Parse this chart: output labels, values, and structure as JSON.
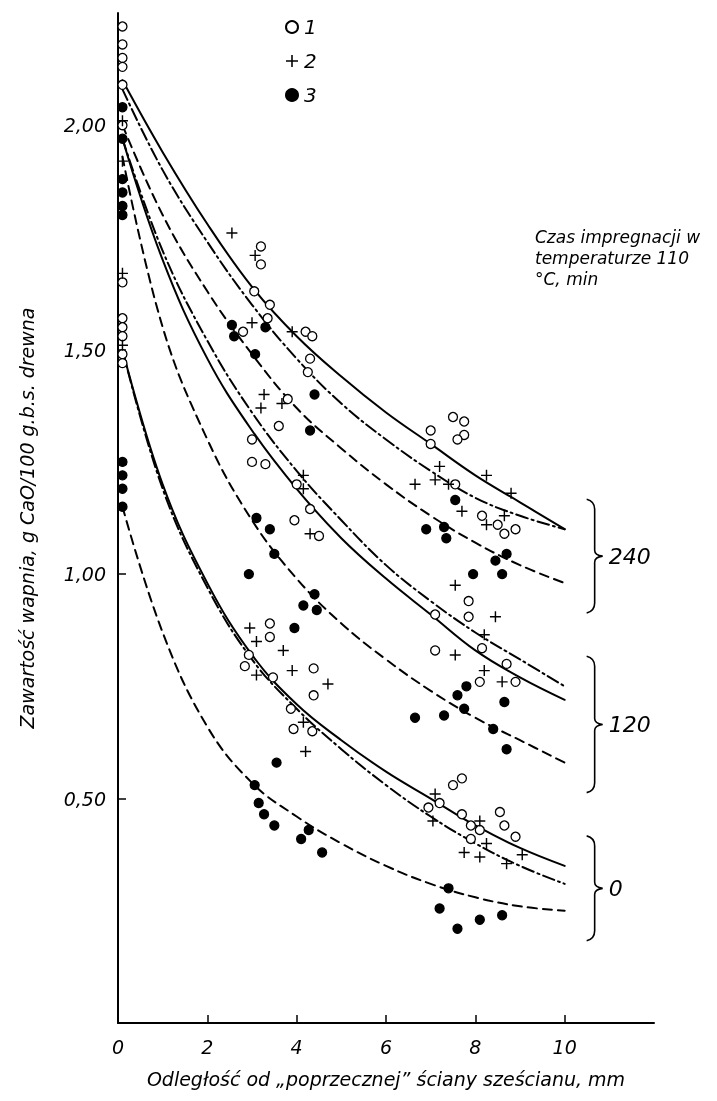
{
  "chart_data": {
    "type": "scatter",
    "xlabel": "Odległość od „poprzecznej” ściany sześcianu, mm",
    "ylabel": "Zawartość wapnia, g CaO/100 g.b.s. drewna",
    "xlim": [
      0,
      12
    ],
    "xticks": [
      0,
      2,
      4,
      6,
      8,
      10
    ],
    "ylim": [
      0,
      2.25
    ],
    "yticks": [
      {
        "value": 0.5,
        "label": "0,50"
      },
      {
        "value": 1,
        "label": "1,00"
      },
      {
        "value": 1.5,
        "label": "1,50"
      },
      {
        "value": 2,
        "label": "2,00"
      }
    ],
    "grid": false,
    "legend": "top",
    "annotations": [
      "Czas impregnacji w temperaturze 110 °C, min",
      "240",
      "120",
      "0"
    ],
    "series": [
      {
        "type": "scatter",
        "name": "1",
        "marker": "circle",
        "color": "#ffffff",
        "x": [
          0.1,
          0.1,
          0.1,
          0.1,
          0.1,
          0.1,
          0.1,
          0.1,
          0.1,
          0.1,
          0.1,
          0.1,
          3.2,
          3.2,
          3.05,
          3.4,
          3.35,
          2.8,
          4.2,
          4.35,
          4.3,
          4.25,
          7.0,
          7.0,
          7.5,
          7.75,
          7.75,
          7.6,
          7.55,
          8.15,
          8.5,
          8.9,
          8.65,
          3.8,
          3.6,
          3.0,
          3.0,
          3.3,
          4.0,
          4.3,
          3.95,
          4.5,
          7.1,
          7.85,
          7.85,
          7.1,
          8.15,
          8.7,
          8.9,
          8.1,
          3.4,
          3.4,
          2.93,
          2.84,
          3.47,
          4.38,
          4.38,
          3.87,
          3.93,
          4.35,
          6.95,
          7.2,
          7.5,
          7.7,
          7.7,
          7.9,
          8.1,
          7.9,
          8.55,
          8.65,
          8.9
        ],
        "values": [
          2.22,
          2.18,
          2.15,
          2.13,
          2.09,
          2.0,
          1.65,
          1.57,
          1.55,
          1.53,
          1.49,
          1.47,
          1.73,
          1.69,
          1.63,
          1.6,
          1.57,
          1.54,
          1.54,
          1.53,
          1.48,
          1.45,
          1.32,
          1.29,
          1.35,
          1.34,
          1.31,
          1.3,
          1.2,
          1.13,
          1.11,
          1.1,
          1.09,
          1.39,
          1.33,
          1.3,
          1.25,
          1.245,
          1.2,
          1.145,
          1.12,
          1.085,
          0.91,
          0.94,
          0.905,
          0.83,
          0.835,
          0.8,
          0.76,
          0.76,
          0.89,
          0.86,
          0.82,
          0.795,
          0.77,
          0.79,
          0.73,
          0.7,
          0.655,
          0.65,
          0.48,
          0.49,
          0.53,
          0.545,
          0.465,
          0.44,
          0.43,
          0.41,
          0.47,
          0.44,
          0.415
        ]
      },
      {
        "type": "scatter",
        "name": "2",
        "marker": "cross",
        "color": "#000000",
        "x": [
          0.1,
          0.1,
          0.1,
          0.1,
          2.55,
          3.07,
          3.0,
          3.9,
          7.2,
          6.65,
          7.1,
          7.4,
          8.25,
          8.8,
          7.7,
          8.65,
          8.25,
          3.27,
          3.2,
          3.67,
          4.15,
          4.15,
          4.3,
          7.55,
          8.45,
          8.2,
          7.55,
          8.2,
          8.6,
          2.95,
          3.1,
          3.7,
          3.9,
          3.1,
          4.7,
          4.2,
          4.15,
          7.1,
          7.05,
          8.1,
          8.25,
          7.75,
          8.1,
          8.7,
          9.05
        ],
        "values": [
          2.01,
          1.92,
          1.67,
          1.51,
          1.76,
          1.71,
          1.56,
          1.54,
          1.24,
          1.2,
          1.21,
          1.2,
          1.22,
          1.18,
          1.14,
          1.13,
          1.11,
          1.4,
          1.37,
          1.38,
          1.22,
          1.19,
          1.09,
          0.975,
          0.905,
          0.865,
          0.82,
          0.785,
          0.76,
          0.88,
          0.85,
          0.83,
          0.785,
          0.775,
          0.755,
          0.605,
          0.67,
          0.51,
          0.45,
          0.45,
          0.4,
          0.38,
          0.37,
          0.355,
          0.375
        ]
      },
      {
        "type": "scatter",
        "name": "3",
        "marker": "circle",
        "color": "#000000",
        "x": [
          0.1,
          0.1,
          0.1,
          0.1,
          0.1,
          0.1,
          0.1,
          0.1,
          0.1,
          0.1,
          2.55,
          2.6,
          3.3,
          3.07,
          4.4,
          4.3,
          6.9,
          7.3,
          7.35,
          7.55,
          7.95,
          8.45,
          8.7,
          8.6,
          3.1,
          3.4,
          3.5,
          2.93,
          4.4,
          4.15,
          4.45,
          3.95,
          6.65,
          7.3,
          7.6,
          7.8,
          7.75,
          8.65,
          8.4,
          8.7,
          3.55,
          3.06,
          3.15,
          3.27,
          3.5,
          4.27,
          4.1,
          4.57,
          7.4,
          7.2,
          7.6,
          8.1,
          8.6
        ],
        "values": [
          2.04,
          1.97,
          1.88,
          1.85,
          1.82,
          1.8,
          1.25,
          1.22,
          1.19,
          1.15,
          1.555,
          1.53,
          1.55,
          1.49,
          1.4,
          1.32,
          1.1,
          1.105,
          1.08,
          1.165,
          1.0,
          1.03,
          1.045,
          1.0,
          1.125,
          1.1,
          1.045,
          1.0,
          0.955,
          0.93,
          0.92,
          0.88,
          0.68,
          0.685,
          0.73,
          0.75,
          0.7,
          0.715,
          0.655,
          0.61,
          0.58,
          0.53,
          0.49,
          0.465,
          0.44,
          0.43,
          0.41,
          0.38,
          0.3,
          0.255,
          0.21,
          0.23,
          0.24
        ]
      },
      {
        "type": "line",
        "color": "#000000",
        "line_style": "solid",
        "marker": "none",
        "x": [
          0.1,
          1,
          2,
          3,
          4,
          5,
          6,
          7,
          8,
          9,
          10
        ],
        "values": [
          2.1,
          1.94,
          1.78,
          1.64,
          1.53,
          1.44,
          1.36,
          1.29,
          1.22,
          1.16,
          1.1
        ]
      },
      {
        "type": "line",
        "color": "#000000",
        "line_style": "dashdot",
        "marker": "none",
        "x": [
          0.1,
          1,
          2,
          3,
          4,
          5,
          6,
          7,
          8,
          9,
          10
        ],
        "values": [
          2.08,
          1.9,
          1.74,
          1.6,
          1.48,
          1.38,
          1.3,
          1.23,
          1.17,
          1.13,
          1.1
        ]
      },
      {
        "type": "line",
        "color": "#000000",
        "line_style": "dashed",
        "marker": "none",
        "x": [
          0.1,
          1,
          2,
          3,
          4,
          5,
          6,
          7,
          8,
          9,
          10
        ],
        "values": [
          2.0,
          1.8,
          1.63,
          1.49,
          1.37,
          1.28,
          1.2,
          1.13,
          1.07,
          1.02,
          0.98
        ]
      },
      {
        "type": "line",
        "color": "#000000",
        "line_style": "solid",
        "marker": "none",
        "x": [
          0.1,
          1,
          2,
          3,
          4,
          5,
          6,
          7,
          8,
          9,
          10
        ],
        "values": [
          1.97,
          1.7,
          1.48,
          1.32,
          1.19,
          1.08,
          0.99,
          0.91,
          0.83,
          0.77,
          0.72
        ]
      },
      {
        "type": "line",
        "color": "#000000",
        "line_style": "dashdot",
        "marker": "none",
        "x": [
          0.1,
          1,
          2,
          3,
          4,
          5,
          6,
          7,
          8,
          9,
          10
        ],
        "values": [
          1.97,
          1.72,
          1.52,
          1.36,
          1.23,
          1.12,
          1.02,
          0.94,
          0.87,
          0.81,
          0.75
        ]
      },
      {
        "type": "line",
        "color": "#000000",
        "line_style": "dashed",
        "marker": "none",
        "x": [
          0.1,
          1,
          2,
          3,
          4,
          5,
          6,
          7,
          8,
          9,
          10
        ],
        "values": [
          1.93,
          1.55,
          1.3,
          1.12,
          0.99,
          0.89,
          0.81,
          0.74,
          0.68,
          0.63,
          0.58
        ]
      },
      {
        "type": "line",
        "color": "#000000",
        "line_style": "solid",
        "marker": "none",
        "x": [
          0.1,
          1,
          2,
          3,
          4,
          5,
          6,
          7,
          8,
          9,
          10
        ],
        "values": [
          1.5,
          1.2,
          0.98,
          0.82,
          0.71,
          0.63,
          0.56,
          0.5,
          0.44,
          0.39,
          0.35
        ]
      },
      {
        "type": "line",
        "color": "#000000",
        "line_style": "dashdot",
        "marker": "none",
        "x": [
          0.1,
          1,
          2,
          3,
          4,
          5,
          6,
          7,
          8,
          9,
          10
        ],
        "values": [
          1.5,
          1.19,
          0.97,
          0.81,
          0.7,
          0.61,
          0.53,
          0.46,
          0.4,
          0.35,
          0.31
        ]
      },
      {
        "type": "line",
        "color": "#000000",
        "line_style": "dashed",
        "marker": "none",
        "x": [
          0.1,
          1,
          2,
          3,
          4,
          5,
          6,
          7,
          8,
          9,
          10
        ],
        "values": [
          1.15,
          0.87,
          0.66,
          0.535,
          0.46,
          0.4,
          0.35,
          0.31,
          0.28,
          0.26,
          0.25
        ]
      }
    ]
  }
}
